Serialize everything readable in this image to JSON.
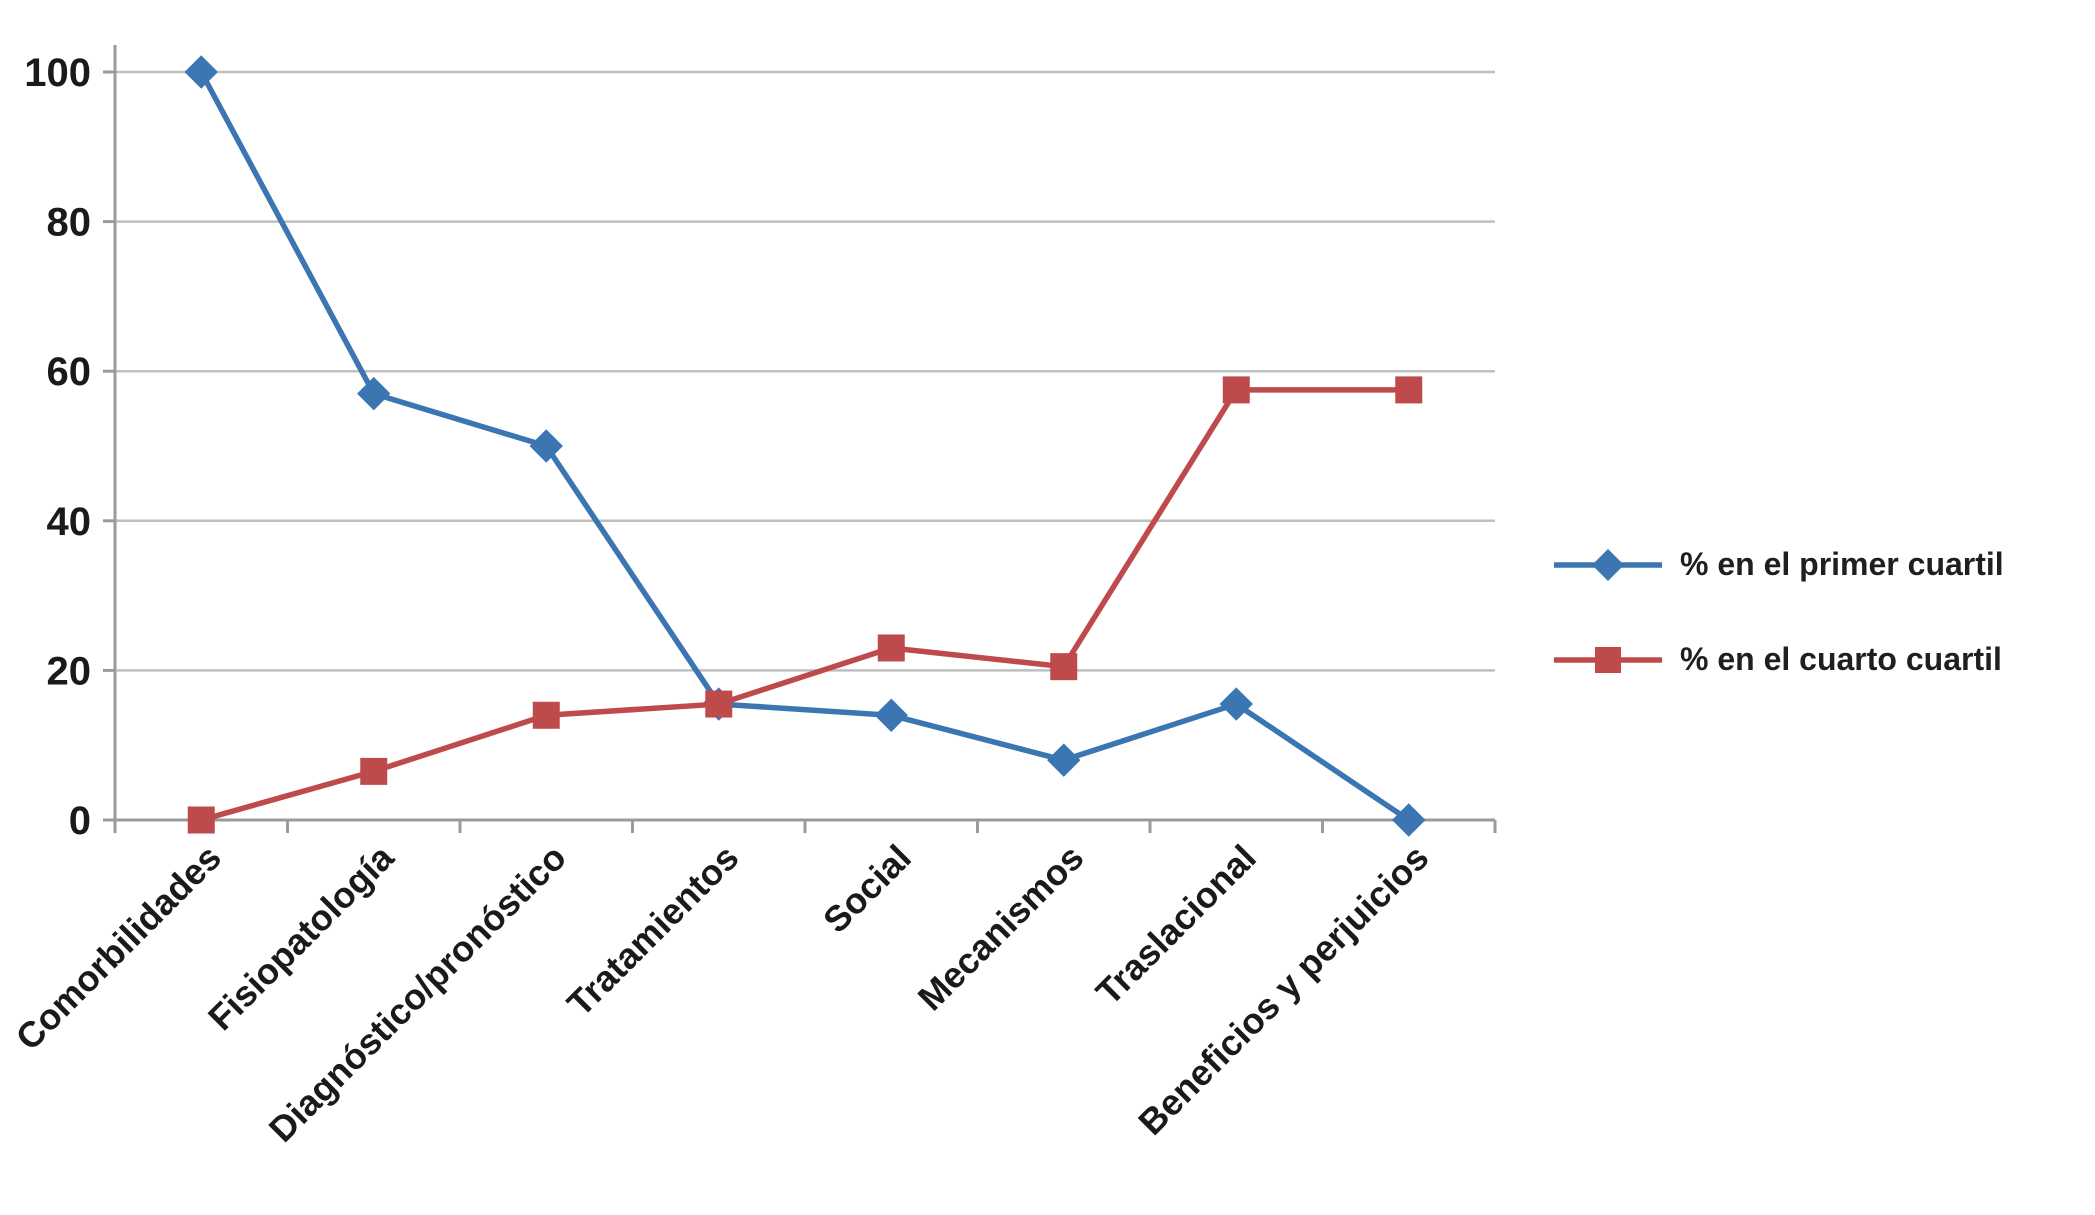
{
  "chart_data": {
    "type": "line",
    "title": "",
    "xlabel": "",
    "ylabel": "",
    "categories": [
      "Comorbilidades",
      "Fisiopatología",
      "Diagnóstico/pronóstico",
      "Tratamientos",
      "Social",
      "Mecanismos",
      "Traslacional",
      "Beneficios y perjuicios"
    ],
    "series": [
      {
        "name": "% en el primer cuartil",
        "color": "#3B76B3",
        "marker": "diamond",
        "values": [
          100,
          57,
          50,
          15.5,
          14,
          8,
          15.5,
          0
        ]
      },
      {
        "name": "% en el cuarto cuartil",
        "color": "#BE4A4C",
        "marker": "square",
        "values": [
          0,
          6.5,
          14,
          15.5,
          23,
          20.5,
          57.5,
          57.5
        ]
      }
    ],
    "ylim": [
      0,
      100
    ],
    "yticks": [
      0,
      20,
      40,
      60,
      80,
      100
    ],
    "grid": true,
    "legend_position": "right"
  },
  "colors": {
    "grid": "#BFBFBF",
    "axis": "#9A9A9A",
    "tick_text": "#1A1A1A"
  }
}
